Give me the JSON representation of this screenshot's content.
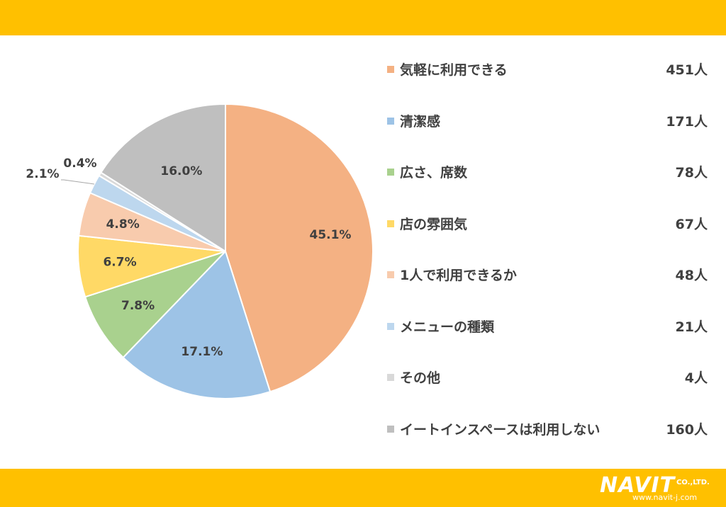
{
  "chart_data": {
    "type": "pie",
    "title": "",
    "slices": [
      {
        "label": "気軽に利用できる",
        "count": "451人",
        "value": 45.1,
        "percent_label": "45.1%",
        "color": "#f4b183"
      },
      {
        "label": "清潔感",
        "count": "171人",
        "value": 17.1,
        "percent_label": "17.1%",
        "color": "#9dc3e6"
      },
      {
        "label": "広さ、席数",
        "count": "78人",
        "value": 7.8,
        "percent_label": "7.8%",
        "color": "#a9d18e"
      },
      {
        "label": "店の雰囲気",
        "count": "67人",
        "value": 6.7,
        "percent_label": "6.7%",
        "color": "#ffd966"
      },
      {
        "label": "1人で利用できるか",
        "count": "48人",
        "value": 4.8,
        "percent_label": "4.8%",
        "color": "#f8cbad"
      },
      {
        "label": "メニューの種類",
        "count": "21人",
        "value": 2.1,
        "percent_label": "2.1%",
        "color": "#bdd7ee"
      },
      {
        "label": "その他",
        "count": "4人",
        "value": 0.4,
        "percent_label": "0.4%",
        "color": "#d9d9d9"
      },
      {
        "label": "イートインスペースは利用しない",
        "count": "160人",
        "value": 16.0,
        "percent_label": "16.0%",
        "color": "#bfbfbf"
      }
    ],
    "legend_placement": "right"
  },
  "logo": {
    "main": "NAVIT",
    "company": "CO.,LTD.",
    "url": "www.navit-j.com"
  },
  "colors": {
    "band": "#ffc000",
    "text": "#404040"
  }
}
